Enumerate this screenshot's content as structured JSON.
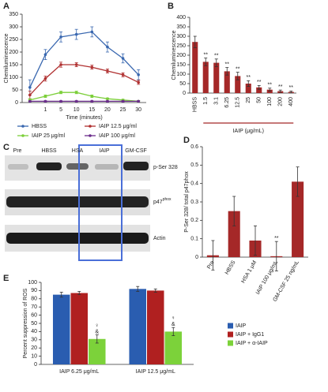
{
  "chart_data": [
    {
      "panel": "A",
      "type": "line",
      "y_label": "Chemiluminescence",
      "x_label": "Time (minutes)",
      "categories": [
        null,
        "1",
        "5",
        "10",
        "15",
        "20",
        "25",
        "30"
      ],
      "ylim": [
        0,
        350
      ],
      "yticks": [
        0,
        50,
        100,
        150,
        200,
        250,
        300,
        350
      ],
      "series": [
        {
          "name": "HBSS",
          "color": "#3a68b0",
          "values": [
            60,
            190,
            260,
            270,
            280,
            220,
            175,
            110
          ],
          "errors": [
            30,
            20,
            20,
            20,
            20,
            20,
            18,
            20
          ]
        },
        {
          "name": "IAIP 12.5 μg/ml",
          "color": "#b03030",
          "values": [
            30,
            95,
            150,
            150,
            140,
            125,
            110,
            80
          ],
          "errors": [
            15,
            10,
            10,
            8,
            8,
            8,
            8,
            8
          ]
        },
        {
          "name": "IAIP 25 μg/ml",
          "color": "#7ccf3a",
          "values": [
            10,
            25,
            40,
            40,
            25,
            15,
            10,
            5
          ],
          "errors": [
            5,
            5,
            5,
            5,
            5,
            3,
            3,
            3
          ]
        },
        {
          "name": "IAIP 100 μg/ml",
          "color": "#6b2d8c",
          "values": [
            5,
            5,
            5,
            5,
            5,
            5,
            5,
            5
          ],
          "errors": [
            2,
            2,
            2,
            2,
            2,
            2,
            2,
            2
          ]
        }
      ]
    },
    {
      "panel": "B",
      "type": "bar",
      "y_label": "Chemiluminescence",
      "x_label": "IAIP (μg/mL)",
      "categories": [
        "HBSS",
        "1.5",
        "3.1",
        "6.25",
        "12.5",
        "25",
        "50",
        "100",
        "200",
        "400"
      ],
      "values": [
        270,
        165,
        160,
        115,
        90,
        50,
        30,
        18,
        10,
        6
      ],
      "errors": [
        30,
        20,
        20,
        20,
        20,
        15,
        10,
        8,
        6,
        5
      ],
      "annotations": [
        null,
        "**",
        "**",
        "**",
        "**",
        "**",
        "**",
        "**",
        "**",
        "**"
      ],
      "color": "#a52828",
      "ylim": [
        0,
        400
      ],
      "yticks": [
        0,
        50,
        100,
        150,
        200,
        250,
        300,
        350,
        400
      ]
    },
    {
      "panel": "D",
      "type": "bar",
      "y_label": "P-Ser 328/ total p47phox",
      "categories": [
        "Pre",
        "HBSS",
        "HSA 1 μM",
        "IAIP 100 μg/mL",
        "GM-CSF 25 ng/mL"
      ],
      "values": [
        0.01,
        0.25,
        0.09,
        0.005,
        0.41
      ],
      "errors": [
        0.08,
        0.08,
        0.08,
        0.08,
        0.08
      ],
      "annotations": [
        null,
        null,
        null,
        "**",
        null
      ],
      "color": "#a52828",
      "ylim": [
        0,
        0.6
      ],
      "yticks": [
        0,
        0.1,
        0.2,
        0.3,
        0.4,
        0.5,
        0.6
      ]
    },
    {
      "panel": "E",
      "type": "bar",
      "y_label": "Percent suppression of ROS",
      "categories": [
        "IAIP 6.25 μg/mL",
        "IAIP 12.5 μg/mL"
      ],
      "ylim": [
        0,
        100
      ],
      "yticks": [
        0,
        10,
        20,
        30,
        40,
        50,
        60,
        70,
        80,
        90,
        100
      ],
      "series": [
        {
          "name": "IAIP",
          "color": "#2a5db0",
          "values": [
            85,
            92
          ],
          "errors": [
            3,
            3
          ]
        },
        {
          "name": "IAIP + IgG1",
          "color": "#b02020",
          "values": [
            87,
            90
          ],
          "errors": [
            2,
            2
          ]
        },
        {
          "name": "IAIP + α-IAIP",
          "color": "#7cd23a",
          "values": [
            31,
            40
          ],
          "errors": [
            5,
            5
          ],
          "annotations": [
            [
              "♀",
              "&"
            ],
            [
              "♀",
              "&"
            ]
          ]
        }
      ]
    }
  ],
  "blot": {
    "panel": "C",
    "lanes": [
      "Pre",
      "HBSS",
      "HSA",
      "IAIP",
      "GM-CSF"
    ],
    "rows": [
      {
        "text": "p-Ser 328"
      },
      {
        "text": "p47",
        "sup": "phox"
      },
      {
        "text": "Actin"
      }
    ]
  }
}
